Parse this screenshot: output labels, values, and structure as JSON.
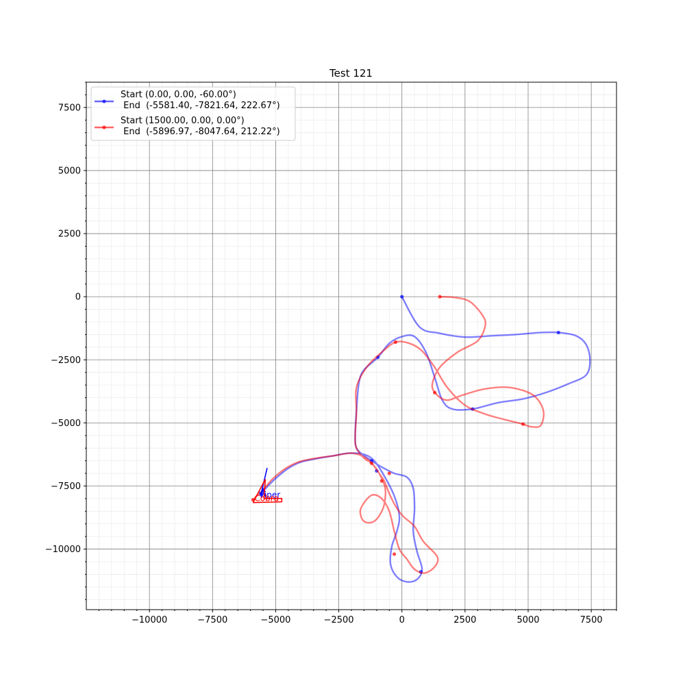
{
  "chart_data": {
    "type": "line",
    "title": "Test 121",
    "xlabel": "",
    "ylabel": "",
    "xlim": [
      -12500,
      8500
    ],
    "ylim": [
      -12400,
      8500
    ],
    "xticks": [
      -10000,
      -7500,
      -5000,
      -2500,
      0,
      2500,
      5000,
      7500
    ],
    "yticks": [
      -10000,
      -7500,
      -5000,
      -2500,
      0,
      2500,
      5000,
      7500
    ],
    "xtick_labels": [
      "−10000",
      "−7500",
      "−5000",
      "−2500",
      "0",
      "2500",
      "5000",
      "7500"
    ],
    "ytick_labels": [
      "−10000",
      "−7500",
      "−5000",
      "−2500",
      "0",
      "2500",
      "5000",
      "7500"
    ],
    "grid": true,
    "minor_grid": true,
    "legend_position": "top-left",
    "series": [
      {
        "legend_line1": "Start (0.00, 0.00, -60.00°)",
        "legend_line2": " End  (-5581.40, -7821.64, 222.67°)",
        "color": "#0000ff",
        "name_label": "Viper",
        "end_heading_deg": 222.67,
        "points": [
          [
            0,
            0
          ],
          [
            700,
            -1200
          ],
          [
            1500,
            -1450
          ],
          [
            2500,
            -1600
          ],
          [
            3500,
            -1550
          ],
          [
            4500,
            -1500
          ],
          [
            5500,
            -1420
          ],
          [
            6200,
            -1420
          ],
          [
            6900,
            -1550
          ],
          [
            7300,
            -1900
          ],
          [
            7450,
            -2500
          ],
          [
            7300,
            -3100
          ],
          [
            6600,
            -3450
          ],
          [
            5700,
            -3800
          ],
          [
            4800,
            -4050
          ],
          [
            3800,
            -4200
          ],
          [
            2800,
            -4450
          ],
          [
            2000,
            -4450
          ],
          [
            1600,
            -4100
          ],
          [
            1300,
            -3200
          ],
          [
            950,
            -2200
          ],
          [
            500,
            -1580
          ],
          [
            0,
            -1580
          ],
          [
            -500,
            -1850
          ],
          [
            -950,
            -2400
          ],
          [
            -1500,
            -2900
          ],
          [
            -1700,
            -3400
          ],
          [
            -1800,
            -4500
          ],
          [
            -1850,
            -5500
          ],
          [
            -1800,
            -6000
          ],
          [
            -1500,
            -6300
          ],
          [
            -1200,
            -6500
          ],
          [
            -800,
            -6750
          ],
          [
            -300,
            -7000
          ],
          [
            200,
            -7150
          ],
          [
            450,
            -7600
          ],
          [
            500,
            -8400
          ],
          [
            450,
            -9300
          ],
          [
            600,
            -10100
          ],
          [
            800,
            -10800
          ],
          [
            600,
            -11200
          ],
          [
            200,
            -11300
          ],
          [
            -200,
            -11100
          ],
          [
            -450,
            -10600
          ],
          [
            -400,
            -9900
          ],
          [
            -200,
            -9300
          ],
          [
            -100,
            -8700
          ],
          [
            -300,
            -7900
          ],
          [
            -700,
            -7100
          ],
          [
            -1100,
            -6500
          ],
          [
            -1500,
            -6250
          ],
          [
            -2100,
            -6200
          ],
          [
            -2700,
            -6300
          ],
          [
            -3300,
            -6400
          ],
          [
            -4000,
            -6550
          ],
          [
            -4500,
            -6800
          ],
          [
            -5000,
            -7200
          ],
          [
            -5400,
            -7600
          ],
          [
            -5581.4,
            -7821.64
          ]
        ],
        "markers": [
          [
            0,
            0
          ],
          [
            6200,
            -1420
          ],
          [
            2800,
            -4450
          ],
          [
            -950,
            -2400
          ],
          [
            -1200,
            -6500
          ],
          [
            -1000,
            -6900
          ],
          [
            750,
            -10900
          ],
          [
            -5581.4,
            -7821.64
          ]
        ]
      },
      {
        "legend_line1": "Start (1500.00, 0.00, 0.00°)",
        "legend_line2": " End  (-5896.97, -8047.64, 212.22°)",
        "color": "#ff0000",
        "name_label": "Cobra",
        "end_heading_deg": 212.22,
        "points": [
          [
            1500,
            0
          ],
          [
            2100,
            -30
          ],
          [
            2700,
            -200
          ],
          [
            3200,
            -750
          ],
          [
            3300,
            -1150
          ],
          [
            3000,
            -1750
          ],
          [
            2200,
            -2200
          ],
          [
            1500,
            -2800
          ],
          [
            1200,
            -3500
          ],
          [
            1400,
            -3900
          ],
          [
            1800,
            -4100
          ],
          [
            2400,
            -3900
          ],
          [
            3300,
            -3650
          ],
          [
            4300,
            -3600
          ],
          [
            5200,
            -3900
          ],
          [
            5600,
            -4500
          ],
          [
            5500,
            -5100
          ],
          [
            5100,
            -5150
          ],
          [
            4800,
            -5050
          ],
          [
            4000,
            -4850
          ],
          [
            3300,
            -4650
          ],
          [
            2500,
            -4300
          ],
          [
            1800,
            -3600
          ],
          [
            1300,
            -2800
          ],
          [
            800,
            -2150
          ],
          [
            300,
            -1850
          ],
          [
            -250,
            -1800
          ],
          [
            -800,
            -2200
          ],
          [
            -1400,
            -2800
          ],
          [
            -1800,
            -3600
          ],
          [
            -1800,
            -4600
          ],
          [
            -1850,
            -5500
          ],
          [
            -1800,
            -6000
          ],
          [
            -1500,
            -6400
          ],
          [
            -1200,
            -6600
          ],
          [
            -900,
            -7000
          ],
          [
            -700,
            -7300
          ],
          [
            -500,
            -7800
          ],
          [
            -250,
            -8300
          ],
          [
            50,
            -8700
          ],
          [
            500,
            -9100
          ],
          [
            850,
            -9700
          ],
          [
            1400,
            -10300
          ],
          [
            1300,
            -10700
          ],
          [
            900,
            -10950
          ],
          [
            500,
            -10800
          ],
          [
            200,
            -10400
          ],
          [
            -100,
            -10000
          ],
          [
            -300,
            -9300
          ],
          [
            -500,
            -8500
          ],
          [
            -800,
            -8000
          ],
          [
            -1150,
            -7850
          ],
          [
            -1450,
            -8100
          ],
          [
            -1650,
            -8500
          ],
          [
            -1500,
            -8900
          ],
          [
            -1100,
            -8900
          ],
          [
            -750,
            -8400
          ],
          [
            -650,
            -7700
          ],
          [
            -800,
            -7200
          ],
          [
            -1100,
            -6700
          ],
          [
            -1500,
            -6350
          ],
          [
            -2000,
            -6200
          ],
          [
            -2700,
            -6300
          ],
          [
            -3400,
            -6400
          ],
          [
            -4100,
            -6550
          ],
          [
            -4600,
            -6800
          ],
          [
            -5100,
            -7200
          ],
          [
            -5500,
            -7650
          ],
          [
            -5896.97,
            -8047.64
          ]
        ],
        "markers": [
          [
            1500,
            0
          ],
          [
            4800,
            -5050
          ],
          [
            1300,
            -3800
          ],
          [
            -250,
            -1800
          ],
          [
            -1200,
            -6600
          ],
          [
            -500,
            -7000
          ],
          [
            -800,
            -7300
          ],
          [
            -300,
            -10200
          ],
          [
            -5896.97,
            -8047.64
          ]
        ]
      }
    ]
  }
}
